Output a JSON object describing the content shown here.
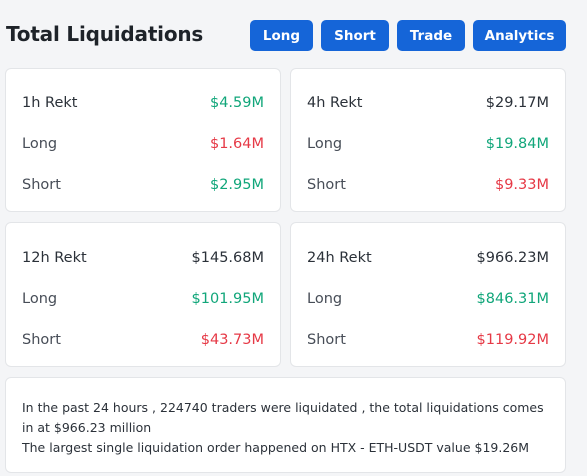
{
  "header": {
    "title": "Total Liquidations",
    "buttons": {
      "long": "Long",
      "short": "Short",
      "trade": "Trade",
      "analytics": "Analytics"
    }
  },
  "cards": [
    {
      "period_label": "1h Rekt",
      "period_value": "$4.59M",
      "long_label": "Long",
      "long_value": "$1.64M",
      "short_label": "Short",
      "short_value": "$2.95M"
    },
    {
      "period_label": "4h Rekt",
      "period_value": "$29.17M",
      "long_label": "Long",
      "long_value": "$19.84M",
      "short_label": "Short",
      "short_value": "$9.33M"
    },
    {
      "period_label": "12h Rekt",
      "period_value": "$145.68M",
      "long_label": "Long",
      "long_value": "$101.95M",
      "short_label": "Short",
      "short_value": "$43.73M"
    },
    {
      "period_label": "24h Rekt",
      "period_value": "$966.23M",
      "long_label": "Long",
      "long_value": "$846.31M",
      "short_label": "Short",
      "short_value": "$119.92M"
    }
  ],
  "summary": {
    "line1": "In the past 24 hours , 224740 traders were liquidated , the total liquidations comes in at $966.23 million",
    "line2": "The largest single liquidation order happened on HTX - ETH-USDT value $19.26M"
  },
  "colors": {
    "accent": "#1565d8",
    "positive": "#11a67a",
    "negative": "#e63946"
  }
}
